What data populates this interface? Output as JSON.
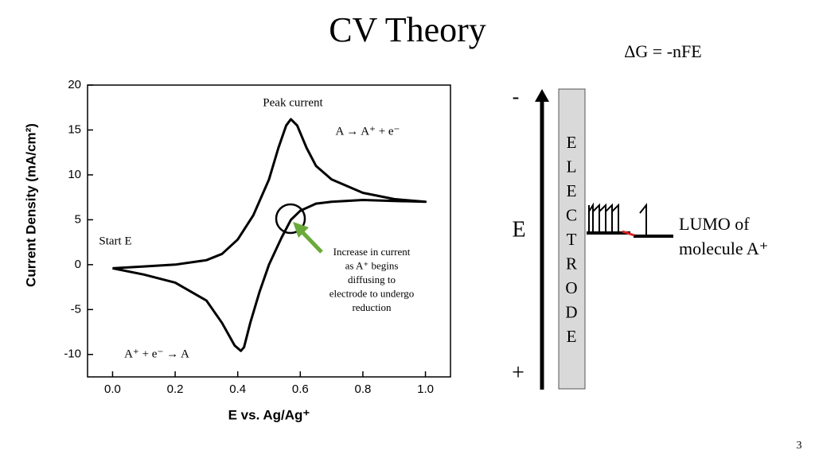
{
  "slide": {
    "title": "CV Theory",
    "equation": "ΔG = -nFE",
    "page_number": "3"
  },
  "diagram": {
    "minus": "-",
    "plus": "+",
    "axis_label": "E",
    "electrode_letters": [
      "E",
      "L",
      "E",
      "C",
      "T",
      "R",
      "O",
      "D",
      "E"
    ],
    "lumo_lines": [
      "LUMO of",
      "molecule A⁺"
    ]
  },
  "chart_data": {
    "type": "line",
    "x_label": "E vs. Ag/Ag⁺",
    "y_label": "Current Density (mA/cm²)",
    "annotations": {
      "peak": "Peak current",
      "oxidation": "A → A⁺ + e⁻",
      "start": "Start E",
      "reduction": "A⁺ + e⁻ → A",
      "increase": [
        "Increase in current",
        "as A⁺ begins",
        "diffusing to",
        "electrode to undergo",
        "reduction"
      ]
    },
    "x": [
      0,
      0.1,
      0.2,
      0.3,
      0.35,
      0.4,
      0.45,
      0.5,
      0.53,
      0.555,
      0.57,
      0.59,
      0.62,
      0.65,
      0.7,
      0.8,
      0.9,
      1.0,
      0.9,
      0.8,
      0.7,
      0.65,
      0.6,
      0.57,
      0.54,
      0.5,
      0.47,
      0.44,
      0.42,
      0.41,
      0.39,
      0.35,
      0.3,
      0.2,
      0.1,
      0
    ],
    "values": [
      -0.4,
      -0.2,
      0,
      0.5,
      1.2,
      2.8,
      5.5,
      9.5,
      13,
      15.5,
      16.2,
      15.5,
      13,
      11,
      9.5,
      8,
      7.3,
      7.0,
      7.1,
      7.2,
      7.0,
      6.8,
      6.0,
      5,
      3,
      0,
      -3,
      -6.5,
      -9.2,
      -9.6,
      -9,
      -6.5,
      -4,
      -2,
      -1.1,
      -0.4
    ],
    "color": "#000000",
    "xlim": [
      -0.08,
      1.08
    ],
    "ylim": [
      -12.5,
      20
    ],
    "xticks": [
      {
        "value": 0,
        "label": "0.0"
      },
      {
        "value": 0.2,
        "label": "0.2"
      },
      {
        "value": 0.4,
        "label": "0.4"
      },
      {
        "value": 0.6,
        "label": "0.6"
      },
      {
        "value": 0.8,
        "label": "0.8"
      },
      {
        "value": 1,
        "label": "1.0"
      }
    ],
    "yticks": [
      -10,
      -5,
      0,
      5,
      10,
      15,
      20
    ]
  }
}
